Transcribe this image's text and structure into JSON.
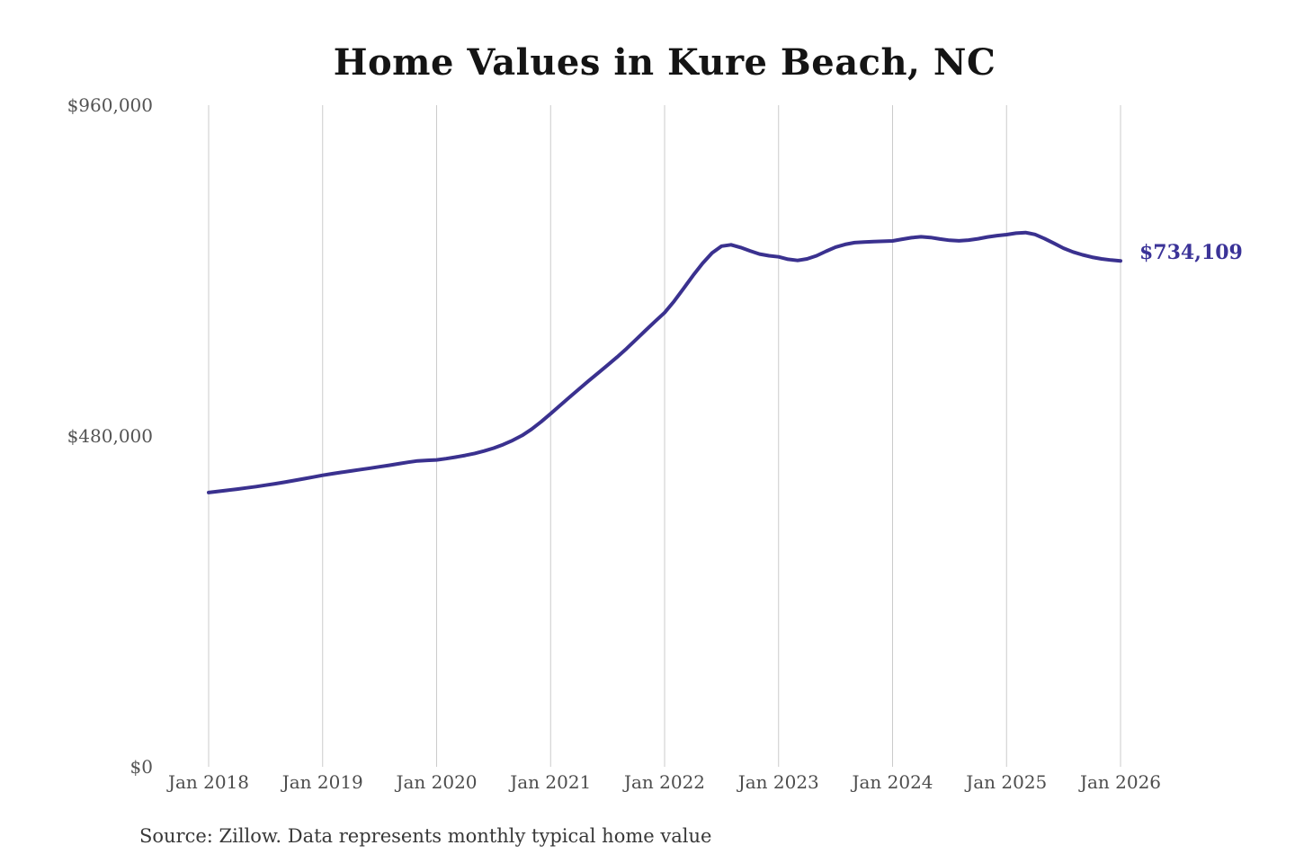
{
  "chart_data": {
    "type": "line",
    "title": "Home Values in Kure Beach, NC",
    "source": "Source: Zillow. Data represents monthly typical home value",
    "series_name": "Monthly typical home value",
    "x_start": "Jan 2018",
    "x_end": "Jan 2026",
    "x_tick_labels": [
      "Jan 2018",
      "Jan 2019",
      "Jan 2020",
      "Jan 2021",
      "Jan 2022",
      "Jan 2023",
      "Jan 2024",
      "Jan 2025",
      "Jan 2026"
    ],
    "y_ticks": [
      {
        "value": 0,
        "label": "$0"
      },
      {
        "value": 480000,
        "label": "$480,000"
      },
      {
        "value": 960000,
        "label": "$960,000"
      }
    ],
    "ylim": [
      0,
      960000
    ],
    "grid": "vertical-yearly",
    "legend": "none",
    "end_label": "$734,109",
    "end_value": 734109,
    "line_color": "#3a318f",
    "label_color": "#3b3398",
    "grid_color": "#cbcbcb",
    "axis_text_color": "#545454",
    "values": [
      398000,
      399600,
      401200,
      402900,
      404700,
      406600,
      408600,
      410700,
      413000,
      415400,
      417900,
      420400,
      423000,
      425200,
      427300,
      429300,
      431300,
      433300,
      435400,
      437500,
      439700,
      441900,
      443900,
      444700,
      445300,
      447100,
      449300,
      451800,
      454700,
      458200,
      462400,
      467500,
      473600,
      480800,
      489900,
      500600,
      512300,
      524300,
      536300,
      548200,
      559900,
      571400,
      582800,
      594500,
      606900,
      620000,
      633200,
      646200,
      659000,
      675500,
      694000,
      713000,
      730500,
      745500,
      755500,
      757500,
      753500,
      748500,
      744000,
      741500,
      740000,
      736500,
      734800,
      737000,
      741500,
      748000,
      754000,
      758000,
      760500,
      761500,
      762000,
      762500,
      763000,
      765500,
      767800,
      769000,
      768000,
      765800,
      764000,
      763200,
      764200,
      766200,
      768800,
      770800,
      772200,
      774200,
      775200,
      772500,
      766500,
      759500,
      752500,
      747000,
      742800,
      739500,
      737000,
      735300,
      734109
    ]
  }
}
